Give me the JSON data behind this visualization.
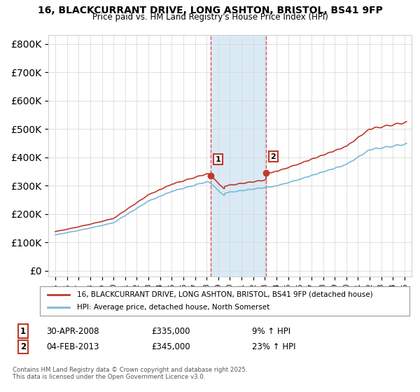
{
  "title": "16, BLACKCURRANT DRIVE, LONG ASHTON, BRISTOL, BS41 9FP",
  "subtitle": "Price paid vs. HM Land Registry's House Price Index (HPI)",
  "legend_line1": "16, BLACKCURRANT DRIVE, LONG ASHTON, BRISTOL, BS41 9FP (detached house)",
  "legend_line2": "HPI: Average price, detached house, North Somerset",
  "annotation1_label": "1",
  "annotation1_date": "30-APR-2008",
  "annotation1_price": "£335,000",
  "annotation1_hpi": "9% ↑ HPI",
  "annotation2_label": "2",
  "annotation2_date": "04-FEB-2013",
  "annotation2_price": "£345,000",
  "annotation2_hpi": "23% ↑ HPI",
  "footnote": "Contains HM Land Registry data © Crown copyright and database right 2025.\nThis data is licensed under the Open Government Licence v3.0.",
  "sale1_year": 2008.33,
  "sale1_value": 335000,
  "sale2_year": 2013.09,
  "sale2_value": 345000,
  "hpi_color": "#7ab8d9",
  "price_color": "#c0392b",
  "shade_color": "#daeaf5",
  "vline_color": "#e05555",
  "ylim_min": -20000,
  "ylim_max": 830000,
  "yticks": [
    0,
    100000,
    200000,
    300000,
    400000,
    500000,
    600000,
    700000,
    800000
  ],
  "background_color": "#ffffff",
  "xlim_min": 1994.4,
  "xlim_max": 2025.6
}
